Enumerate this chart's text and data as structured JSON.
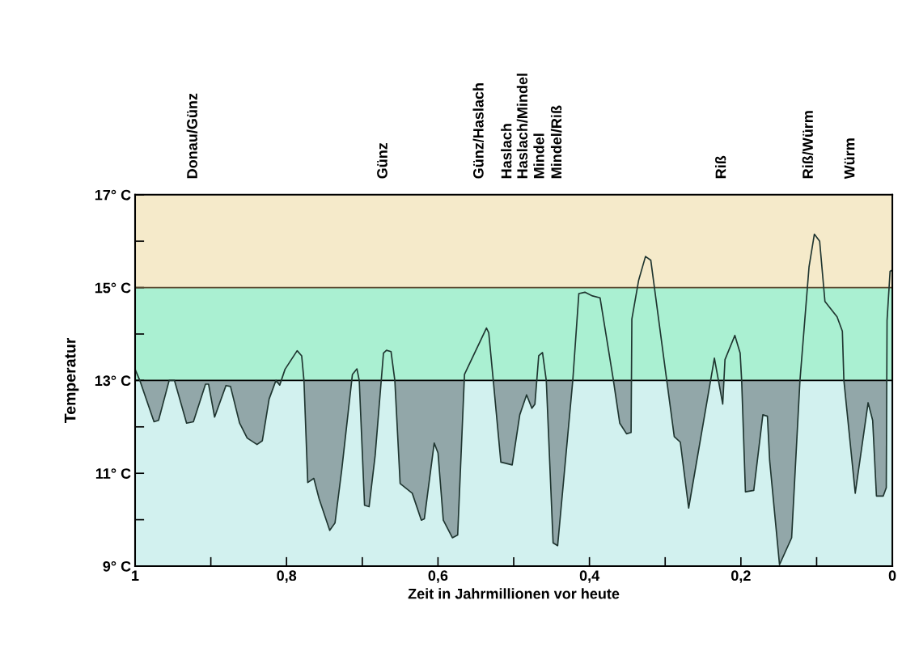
{
  "chart_data": {
    "type": "area",
    "xlabel": "Zeit in Jahrmillionen vor heute",
    "ylabel": "Temperatur",
    "xlim": [
      1,
      0
    ],
    "ylim": [
      9,
      17
    ],
    "xticks": [
      {
        "value": 1,
        "label": "1"
      },
      {
        "value": 0.9,
        "label": null
      },
      {
        "value": 0.8,
        "label": "0,8"
      },
      {
        "value": 0.7,
        "label": null
      },
      {
        "value": 0.6,
        "label": "0,6"
      },
      {
        "value": 0.5,
        "label": null
      },
      {
        "value": 0.4,
        "label": "0,4"
      },
      {
        "value": 0.3,
        "label": null
      },
      {
        "value": 0.2,
        "label": "0,2"
      },
      {
        "value": 0.1,
        "label": null
      },
      {
        "value": 0,
        "label": "0"
      }
    ],
    "yticks": [
      {
        "value": 9,
        "label": "9° C"
      },
      {
        "value": 10,
        "label": null
      },
      {
        "value": 11,
        "label": "11° C"
      },
      {
        "value": 12,
        "label": null
      },
      {
        "value": 13,
        "label": "13° C"
      },
      {
        "value": 14,
        "label": null
      },
      {
        "value": 15,
        "label": "15° C"
      },
      {
        "value": 16,
        "label": null
      },
      {
        "value": 17,
        "label": "17° C"
      }
    ],
    "grid": false,
    "legend": false,
    "bands": [
      {
        "axis": "y",
        "from": 9,
        "to": 13,
        "color": "#d2f1ef"
      },
      {
        "axis": "y",
        "from": 13,
        "to": 15,
        "color": "#aaf0d2"
      },
      {
        "axis": "y",
        "from": 15,
        "to": 17,
        "color": "#f5eaca"
      }
    ],
    "ref_lines": [
      {
        "axis": "y",
        "value": 13,
        "color": "#000000"
      },
      {
        "axis": "y",
        "value": 15,
        "color": "#5a4a30"
      }
    ],
    "series": [
      {
        "color": "#1f3530",
        "x": [
          1.0,
          0.994,
          0.975,
          0.969,
          0.955,
          0.948,
          0.932,
          0.923,
          0.907,
          0.903,
          0.895,
          0.88,
          0.874,
          0.862,
          0.852,
          0.839,
          0.832,
          0.823,
          0.814,
          0.809,
          0.802,
          0.786,
          0.78,
          0.777,
          0.772,
          0.764,
          0.757,
          0.743,
          0.736,
          0.727,
          0.713,
          0.707,
          0.704,
          0.697,
          0.691,
          0.683,
          0.672,
          0.668,
          0.662,
          0.657,
          0.65,
          0.634,
          0.622,
          0.618,
          0.605,
          0.6,
          0.593,
          0.581,
          0.574,
          0.565,
          0.536,
          0.533,
          0.527,
          0.517,
          0.502,
          0.492,
          0.483,
          0.476,
          0.472,
          0.467,
          0.462,
          0.457,
          0.448,
          0.442,
          0.422,
          0.414,
          0.406,
          0.396,
          0.386,
          0.369,
          0.36,
          0.351,
          0.345,
          0.344,
          0.335,
          0.326,
          0.319,
          0.299,
          0.288,
          0.28,
          0.269,
          0.24,
          0.235,
          0.224,
          0.221,
          0.208,
          0.201,
          0.199,
          0.194,
          0.183,
          0.171,
          0.165,
          0.162,
          0.149,
          0.133,
          0.122,
          0.11,
          0.103,
          0.096,
          0.089,
          0.073,
          0.066,
          0.064,
          0.049,
          0.032,
          0.026,
          0.021,
          0.012,
          0.008,
          0.007,
          0.003,
          0.0
        ],
        "values": [
          13.24,
          13.01,
          12.11,
          12.14,
          13.0,
          13.0,
          12.08,
          12.11,
          12.92,
          12.92,
          12.21,
          12.89,
          12.87,
          12.08,
          11.76,
          11.62,
          11.7,
          12.6,
          13.0,
          12.9,
          13.24,
          13.64,
          13.53,
          13.0,
          10.8,
          10.89,
          10.45,
          9.77,
          9.93,
          11.09,
          13.13,
          13.25,
          13.0,
          10.31,
          10.28,
          11.38,
          13.59,
          13.65,
          13.62,
          13.0,
          10.78,
          10.57,
          9.99,
          10.02,
          11.65,
          11.44,
          9.99,
          9.61,
          9.67,
          13.13,
          14.13,
          14.03,
          13.0,
          11.24,
          11.18,
          12.26,
          12.69,
          12.4,
          12.49,
          13.53,
          13.6,
          13.0,
          9.5,
          9.44,
          13.0,
          14.87,
          14.9,
          14.82,
          14.78,
          13.07,
          12.08,
          11.85,
          11.88,
          14.32,
          15.16,
          15.67,
          15.59,
          13.13,
          11.79,
          11.67,
          10.25,
          13.0,
          13.48,
          12.49,
          13.45,
          13.97,
          13.59,
          13.0,
          10.6,
          10.63,
          12.26,
          12.23,
          11.27,
          9.03,
          9.61,
          13.0,
          15.45,
          16.15,
          16.0,
          14.7,
          14.37,
          14.06,
          13.0,
          10.57,
          12.52,
          12.14,
          10.51,
          10.51,
          10.69,
          14.29,
          15.35,
          15.38
        ]
      }
    ],
    "annotations": [
      {
        "text": "Donau/Günz",
        "x": 0.923,
        "y": 17
      },
      {
        "text": "Günz",
        "x": 0.672,
        "y": 17
      },
      {
        "text": "Günz/Haslach",
        "x": 0.545,
        "y": 17
      },
      {
        "text": "Haslach",
        "x": 0.508,
        "y": 17
      },
      {
        "text": "Haslach/Mindel",
        "x": 0.487,
        "y": 17
      },
      {
        "text": "Mindel",
        "x": 0.465,
        "y": 17
      },
      {
        "text": "Mindel/Riß",
        "x": 0.442,
        "y": 17
      },
      {
        "text": "Riß",
        "x": 0.225,
        "y": 17
      },
      {
        "text": "Riß/Würm",
        "x": 0.11,
        "y": 17
      },
      {
        "text": "Würm",
        "x": 0.055,
        "y": 17
      }
    ]
  }
}
